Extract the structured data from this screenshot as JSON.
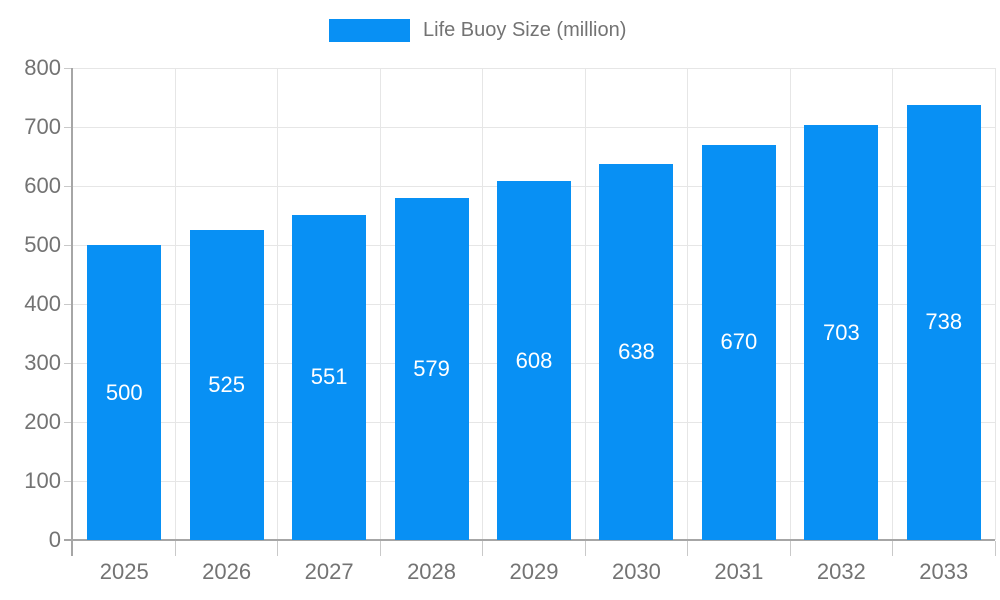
{
  "chart_data": {
    "type": "bar",
    "title": "Life Buoy Size (million)",
    "legend_label": "Life Buoy Size (million)",
    "legend_position": "top",
    "categories": [
      "2025",
      "2026",
      "2027",
      "2028",
      "2029",
      "2030",
      "2031",
      "2032",
      "2033"
    ],
    "values": [
      500,
      525,
      551,
      579,
      608,
      638,
      670,
      703,
      738
    ],
    "xlabel": "",
    "ylabel": "",
    "ylim": [
      0,
      800
    ],
    "ytick_step": 100,
    "ytick_labels": [
      "0",
      "100",
      "200",
      "300",
      "400",
      "500",
      "600",
      "700",
      "800"
    ],
    "grid": true,
    "colors": {
      "bar": "#0890f4",
      "value_label": "#ffffff",
      "axis_text": "#737373",
      "axis_line": "#a6a6a6",
      "gridline": "#e6e6e6",
      "tick": "#c9c9c9",
      "background": "#ffffff"
    }
  }
}
